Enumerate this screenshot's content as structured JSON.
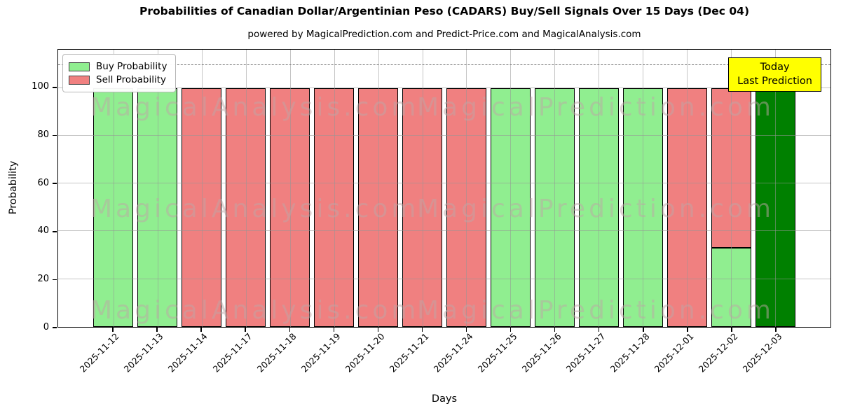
{
  "title": "Probabilities of Canadian Dollar/Argentinian Peso (CADARS) Buy/Sell Signals Over 15 Days (Dec 04)",
  "subtitle": "powered by MagicalPrediction.com and Predict-Price.com and MagicalAnalysis.com",
  "watermark": {
    "left": "MagicalAnalysis.com",
    "right": "MagicalPrediction.com"
  },
  "annotation_box": {
    "line1": "Today",
    "line2": "Last Prediction",
    "bg_color": "#ffff00"
  },
  "legend": [
    {
      "label": "Buy Probability",
      "color": "#90ee90"
    },
    {
      "label": "Sell Probability",
      "color": "#f08080"
    }
  ],
  "chart_data": {
    "type": "bar",
    "stacked": true,
    "title": "Probabilities of Canadian Dollar/Argentinian Peso (CADARS) Buy/Sell Signals Over 15 Days (Dec 04)",
    "xlabel": "Days",
    "ylabel": "Probability",
    "ylim": [
      0,
      116
    ],
    "yticks": [
      0,
      20,
      40,
      60,
      80,
      100
    ],
    "dashed_line_y": 110,
    "grid": true,
    "legend_position": "upper left",
    "categories": [
      "2025-11-12",
      "2025-11-13",
      "2025-11-14",
      "2025-11-17",
      "2025-11-18",
      "2025-11-19",
      "2025-11-20",
      "2025-11-21",
      "2025-11-24",
      "2025-11-25",
      "2025-11-26",
      "2025-11-27",
      "2025-11-28",
      "2025-12-01",
      "2025-12-02",
      "2025-12-03"
    ],
    "series": [
      {
        "name": "Buy Probability",
        "color": "#90ee90",
        "values": [
          100,
          100,
          0,
          0,
          0,
          0,
          0,
          0,
          0,
          100,
          100,
          100,
          100,
          0,
          33,
          100
        ]
      },
      {
        "name": "Sell Probability",
        "color": "#f08080",
        "values": [
          0,
          0,
          100,
          100,
          100,
          100,
          100,
          100,
          100,
          0,
          0,
          0,
          0,
          100,
          67,
          0
        ]
      }
    ],
    "today_bar": {
      "category": "2025-12-03",
      "color": "#008000",
      "value": 100
    }
  }
}
